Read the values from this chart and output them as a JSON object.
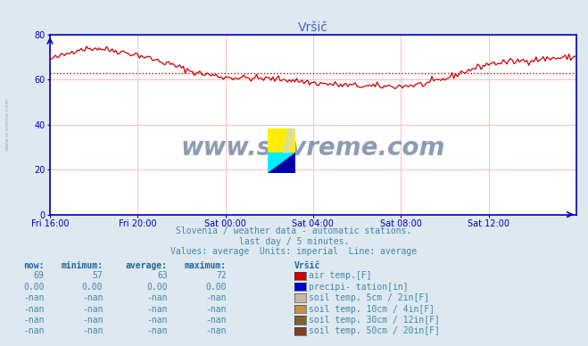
{
  "title": "Vršič",
  "bg_color": "#dde8f0",
  "plot_bg_color": "#ffffff",
  "title_color": "#4466cc",
  "axis_color": "#0000bb",
  "grid_color": "#ffbbbb",
  "text_color": "#4488aa",
  "header_color": "#226699",
  "watermark_text": "www.si-vreme.com",
  "watermark_color": "#1a3a6a",
  "side_label": "www.si-vreme.com",
  "subtitle1": "Slovenia / weather data - automatic stations.",
  "subtitle2": "last day / 5 minutes.",
  "subtitle3": "Values: average  Units: imperial  Line: average",
  "xlabels": [
    "Fri 16:00",
    "Fri 20:00",
    "Sat 00:00",
    "Sat 04:00",
    "Sat 08:00",
    "Sat 12:00"
  ],
  "xtick_pos": [
    0,
    48,
    96,
    144,
    192,
    240
  ],
  "ylim": [
    0,
    80
  ],
  "yticks": [
    0,
    20,
    40,
    60,
    80
  ],
  "avg_line_y": 63,
  "line_color": "#cc0000",
  "n_points": 289,
  "table_headers": [
    "now:",
    "minimum:",
    "average:",
    "maximum:",
    "Vršič"
  ],
  "table_rows": [
    {
      "now": "69",
      "min": "57",
      "avg": "63",
      "max": "72",
      "color": "#cc0000",
      "label": "air temp.[F]"
    },
    {
      "now": "0.00",
      "min": "0.00",
      "avg": "0.00",
      "max": "0.00",
      "color": "#0000cc",
      "label": "precipi- tation[in]"
    },
    {
      "now": "-nan",
      "min": "-nan",
      "avg": "-nan",
      "max": "-nan",
      "color": "#c8b8a0",
      "label": "soil temp. 5cm / 2in[F]"
    },
    {
      "now": "-nan",
      "min": "-nan",
      "avg": "-nan",
      "max": "-nan",
      "color": "#c89040",
      "label": "soil temp. 10cm / 4in[F]"
    },
    {
      "now": "-nan",
      "min": "-nan",
      "avg": "-nan",
      "max": "-nan",
      "color": "#806030",
      "label": "soil temp. 30cm / 12in[F]"
    },
    {
      "now": "-nan",
      "min": "-nan",
      "avg": "-nan",
      "max": "-nan",
      "color": "#804020",
      "label": "soil temp. 50cm / 20in[F]"
    }
  ]
}
